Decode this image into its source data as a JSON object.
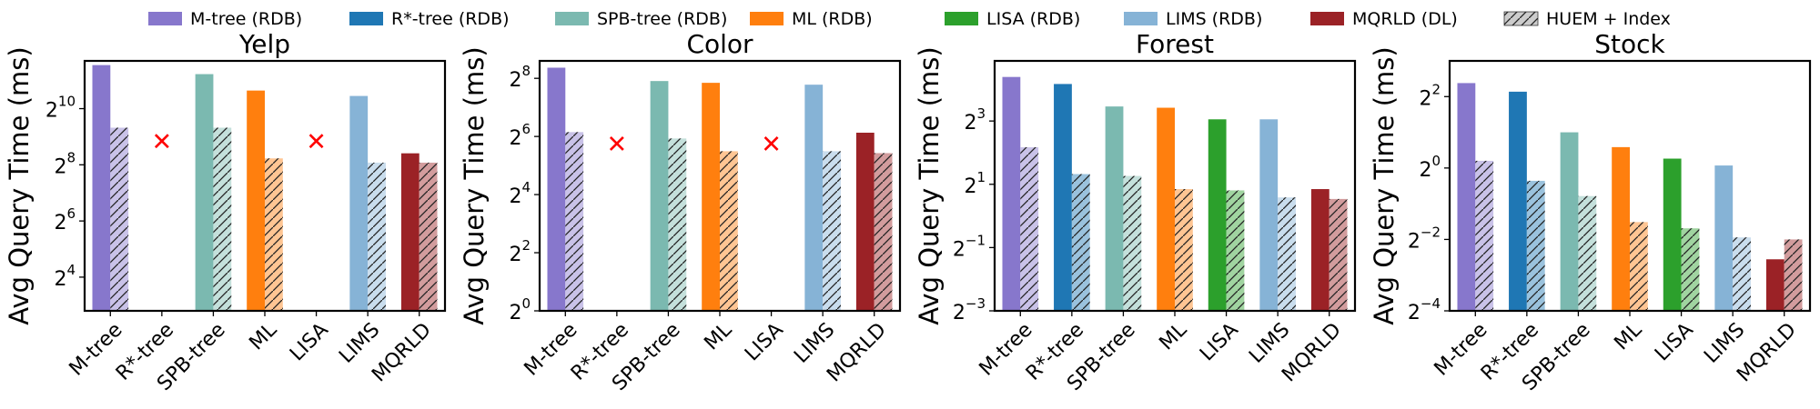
{
  "legend": [
    {
      "label": "M-tree (RDB)",
      "color": "#8777cc",
      "hatch": false
    },
    {
      "label": "R*-tree (RDB)",
      "color": "#1f77b4",
      "hatch": false
    },
    {
      "label": "SPB-tree (RDB)",
      "color": "#7bb9b0",
      "hatch": false
    },
    {
      "label": "ML (RDB)",
      "color": "#ff7f0e",
      "hatch": false
    },
    {
      "label": "LISA (RDB)",
      "color": "#2ca02c",
      "hatch": false
    },
    {
      "label": "LIMS (RDB)",
      "color": "#86b3d6",
      "hatch": false
    },
    {
      "label": "MQRLD (DL)",
      "color": "#9b2226",
      "hatch": false
    },
    {
      "label": "HUEM + Index",
      "color": "#cccccc",
      "hatch": true
    }
  ],
  "chart_data": [
    {
      "type": "bar",
      "title": "Yelp",
      "ylabel": "Avg Query Time (ms)",
      "yscale": "log2",
      "ylim_exp": [
        2.8,
        11.7
      ],
      "yticks_exp": [
        4,
        6,
        8,
        10
      ],
      "categories": [
        "M-tree",
        "R*-tree",
        "SPB-tree",
        "ML",
        "LISA",
        "LIMS",
        "MQRLD"
      ],
      "colors": [
        "#8777cc",
        "#1f77b4",
        "#7bb9b0",
        "#ff7f0e",
        "#2ca02c",
        "#86b3d6",
        "#9b2226"
      ],
      "series": [
        {
          "name": "RDB",
          "values": [
            3000,
            null,
            2400,
            1600,
            null,
            1400,
            340
          ]
        },
        {
          "name": "HUEM + Index",
          "values": [
            640,
            null,
            640,
            300,
            null,
            270,
            270
          ]
        }
      ],
      "missing_marker_value": 460
    },
    {
      "type": "bar",
      "title": "Color",
      "ylabel": "Avg Query Time (ms)",
      "yscale": "log2",
      "ylim_exp": [
        0,
        8.6
      ],
      "yticks_exp": [
        0,
        2,
        4,
        6,
        8
      ],
      "categories": [
        "M-tree",
        "R*-tree",
        "SPB-tree",
        "ML",
        "LISA",
        "LIMS",
        "MQRLD"
      ],
      "colors": [
        "#8777cc",
        "#1f77b4",
        "#7bb9b0",
        "#ff7f0e",
        "#2ca02c",
        "#86b3d6",
        "#9b2226"
      ],
      "series": [
        {
          "name": "RDB",
          "values": [
            330,
            null,
            240,
            230,
            null,
            220,
            70
          ]
        },
        {
          "name": "HUEM + Index",
          "values": [
            71,
            null,
            61,
            45,
            null,
            45,
            43
          ]
        }
      ],
      "missing_marker_value": 54
    },
    {
      "type": "bar",
      "title": "Forest",
      "ylabel": "Avg Query Time (ms)",
      "yscale": "log2",
      "ylim_exp": [
        -3,
        4.9
      ],
      "yticks_exp": [
        -3,
        -1,
        1,
        3
      ],
      "categories": [
        "M-tree",
        "R*-tree",
        "SPB-tree",
        "ML",
        "LISA",
        "LIMS",
        "MQRLD"
      ],
      "colors": [
        "#8777cc",
        "#1f77b4",
        "#7bb9b0",
        "#ff7f0e",
        "#2ca02c",
        "#86b3d6",
        "#9b2226"
      ],
      "series": [
        {
          "name": "RDB",
          "values": [
            21,
            18,
            11,
            10.7,
            8.3,
            8.3,
            1.8
          ]
        },
        {
          "name": "HUEM + Index",
          "values": [
            4.5,
            2.5,
            2.4,
            1.8,
            1.75,
            1.5,
            1.45
          ]
        }
      ],
      "missing_marker_value": null
    },
    {
      "type": "bar",
      "title": "Stock",
      "ylabel": "Avg Query Time (ms)",
      "yscale": "log2",
      "ylim_exp": [
        -4,
        3.0
      ],
      "yticks_exp": [
        -4,
        -2,
        0,
        2
      ],
      "categories": [
        "M-tree",
        "R*-tree",
        "SPB-tree",
        "ML",
        "LISA",
        "LIMS",
        "MQRLD"
      ],
      "colors": [
        "#8777cc",
        "#1f77b4",
        "#7bb9b0",
        "#ff7f0e",
        "#2ca02c",
        "#86b3d6",
        "#9b2226"
      ],
      "series": [
        {
          "name": "RDB",
          "values": [
            5.2,
            4.4,
            2.0,
            1.5,
            1.2,
            1.05,
            0.17
          ]
        },
        {
          "name": "HUEM + Index",
          "values": [
            1.15,
            0.78,
            0.58,
            0.35,
            0.31,
            0.26,
            0.25
          ]
        }
      ],
      "missing_marker_value": null
    }
  ]
}
